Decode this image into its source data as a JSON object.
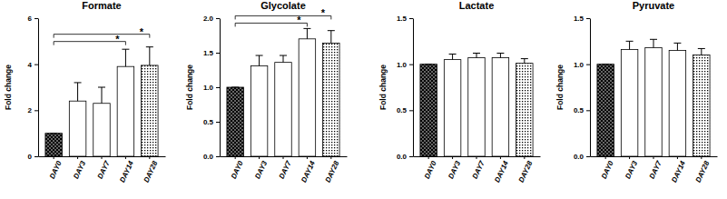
{
  "chart_data": [
    {
      "type": "bar",
      "title": "Formate",
      "y_label": "Fold change",
      "categories": [
        "DAY0",
        "DAY3",
        "DAY7",
        "DAY14",
        "DAY28"
      ],
      "values": [
        1,
        2.4,
        2.3,
        3.9,
        3.95
      ],
      "errors": [
        0,
        0.8,
        0.7,
        0.75,
        0.8
      ],
      "ylim": [
        0,
        6
      ],
      "yticks": [
        0,
        2,
        4,
        6
      ],
      "color": "#000000",
      "significance": [
        {
          "groups": [
            "DAY0",
            "DAY14"
          ],
          "label": "*"
        },
        {
          "groups": [
            "DAY0",
            "DAY28"
          ],
          "label": "*"
        }
      ]
    },
    {
      "type": "bar",
      "title": "Glycolate",
      "y_label": "Fold change",
      "categories": [
        "DAY0",
        "DAY3",
        "DAY7",
        "DAY14",
        "DAY28"
      ],
      "values": [
        1,
        1.31,
        1.36,
        1.7,
        1.64
      ],
      "errors": [
        0,
        0.15,
        0.1,
        0.15,
        0.18
      ],
      "ylim": [
        0,
        2
      ],
      "yticks": [
        {
          "value": 0,
          "label": "0.0"
        },
        {
          "value": 0.5,
          "label": "0.5"
        },
        {
          "value": 1,
          "label": "1.0"
        },
        {
          "value": 1.5,
          "label": "1.5"
        },
        {
          "value": 2,
          "label": "2.0"
        }
      ],
      "color": "#000000",
      "significance": [
        {
          "groups": [
            "DAY0",
            "DAY14"
          ],
          "label": "*"
        },
        {
          "groups": [
            "DAY0",
            "DAY28"
          ],
          "label": "*"
        }
      ]
    },
    {
      "type": "bar",
      "title": "Lactate",
      "y_label": "Fold change",
      "categories": [
        "DAY0",
        "DAY3",
        "DAY7",
        "DAY14",
        "DAY28"
      ],
      "values": [
        1,
        1.05,
        1.07,
        1.07,
        1.01
      ],
      "errors": [
        0,
        0.06,
        0.05,
        0.05,
        0.05
      ],
      "ylim": [
        0,
        1.5
      ],
      "yticks": [
        {
          "value": 0,
          "label": "0.0"
        },
        {
          "value": 0.5,
          "label": "0.5"
        },
        {
          "value": 1,
          "label": "1.0"
        },
        {
          "value": 1.5,
          "label": "1.5"
        }
      ],
      "color": "#000000"
    },
    {
      "type": "bar",
      "title": "Pyruvate",
      "y_label": "Fold change",
      "categories": [
        "DAY0",
        "DAY3",
        "DAY7",
        "DAY14",
        "DAY28"
      ],
      "values": [
        1,
        1.16,
        1.18,
        1.15,
        1.1
      ],
      "errors": [
        0,
        0.09,
        0.09,
        0.08,
        0.07
      ],
      "ylim": [
        0,
        1.5
      ],
      "yticks": [
        {
          "value": 0,
          "label": "0.0"
        },
        {
          "value": 0.5,
          "label": "0.5"
        },
        {
          "value": 1,
          "label": "1.0"
        },
        {
          "value": 1.5,
          "label": "1.5"
        }
      ],
      "color": "#000000"
    }
  ]
}
